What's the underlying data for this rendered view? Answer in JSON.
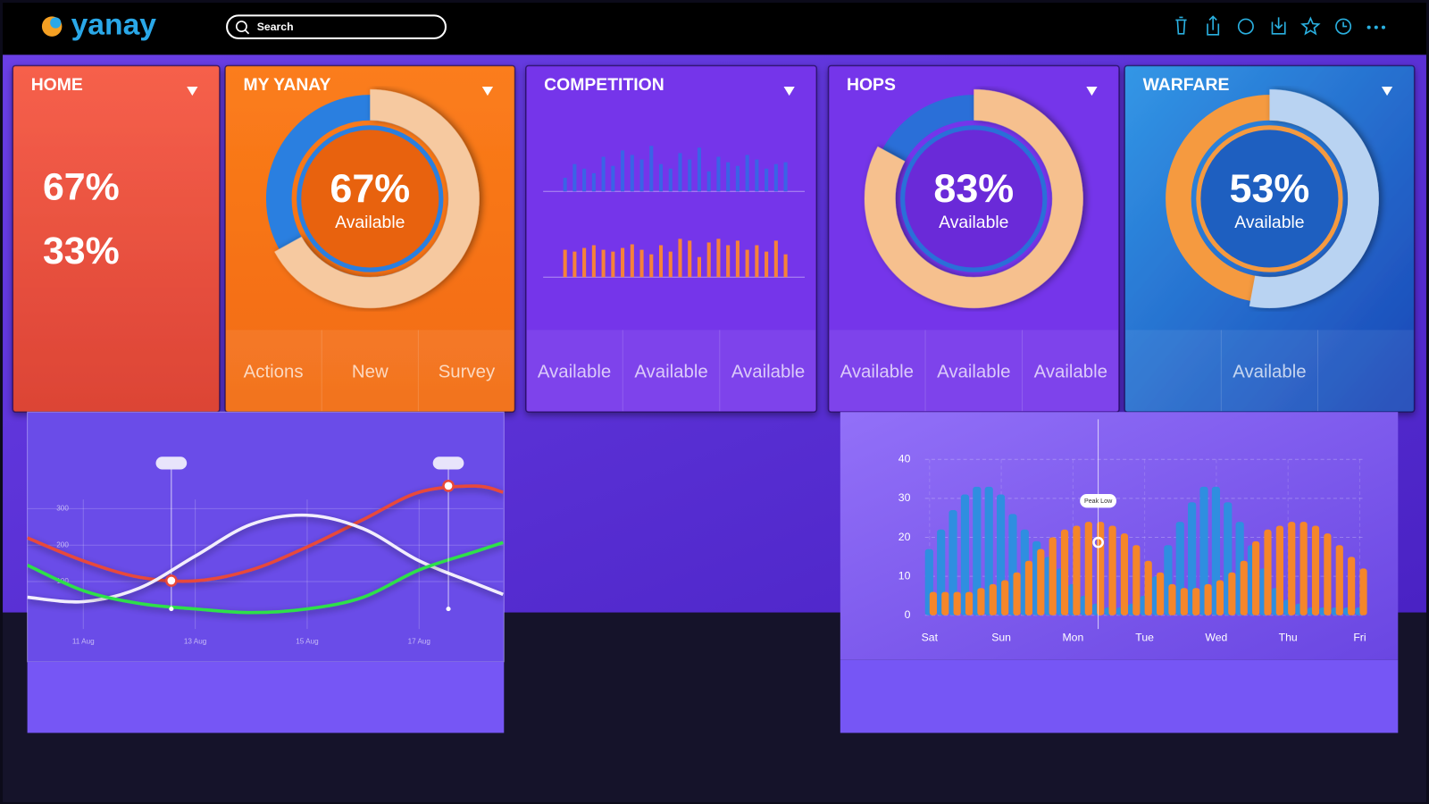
{
  "header": {
    "logo": "yanay",
    "search_placeholder": "Search"
  },
  "cards": [
    {
      "title": "HOME",
      "stats": [
        "67%",
        "33%"
      ]
    },
    {
      "title": "MY YANAY",
      "donut": {
        "value": 67,
        "label": "67%",
        "caption": "Available",
        "arc_color": "#f6c9a0",
        "rest_color": "#2a7fe0",
        "center_color": "#e8620e"
      },
      "footer": [
        "Actions",
        "New",
        "Survey"
      ]
    },
    {
      "title": "COMPETITION",
      "mini_charts": [
        {
          "type": "bar",
          "color": "#3a63e6",
          "ylim": [
            0,
            55
          ],
          "values": [
            15,
            30,
            25,
            20,
            38,
            28,
            45,
            40,
            35,
            50,
            30,
            25,
            42,
            35,
            48,
            22,
            38,
            32,
            28,
            40,
            35,
            25,
            30,
            32
          ]
        },
        {
          "type": "bar",
          "color": "#f5823a",
          "ylim": [
            0,
            55
          ],
          "values": [
            30,
            28,
            32,
            35,
            30,
            28,
            32,
            36,
            30,
            25,
            35,
            28,
            42,
            40,
            22,
            38,
            42,
            35,
            40,
            30,
            35,
            28,
            40,
            25
          ]
        }
      ],
      "footer": [
        "Available",
        "Available",
        "Available"
      ]
    },
    {
      "title": "HOPS",
      "donut": {
        "value": 83,
        "label": "83%",
        "caption": "Available",
        "arc_color": "#f6c08e",
        "rest_color": "#2a6fd8",
        "center_color": "#6a2ad8"
      },
      "footer": [
        "Available",
        "Available",
        "Available"
      ]
    },
    {
      "title": "WARFARE",
      "donut": {
        "value": 53,
        "label": "53%",
        "caption": "Available",
        "arc_color": "#b9d3f2",
        "rest_color": "#f59a40",
        "center_color": "#1e5fc0"
      },
      "footer": [
        "Available"
      ]
    }
  ],
  "chart_data": [
    {
      "type": "line",
      "x": [
        10,
        11,
        12,
        13,
        14,
        15,
        16,
        17,
        18,
        18.5
      ],
      "series": [
        {
          "color": "#e8483a",
          "values": [
            220,
            157,
            112,
            102,
            132,
            195,
            270,
            345,
            362,
            345
          ]
        },
        {
          "color": "#f2eefc",
          "values": [
            57,
            45,
            82,
            170,
            257,
            282,
            245,
            157,
            95,
            65
          ]
        },
        {
          "color": "#2fe04a",
          "values": [
            145,
            75,
            40,
            25,
            15,
            25,
            57,
            132,
            182,
            207
          ]
        }
      ],
      "xlim": [
        10,
        18.5
      ],
      "ylim": [
        -30,
        380
      ],
      "xticks": [
        {
          "value": 11,
          "label": "11 Aug"
        },
        {
          "value": 13,
          "label": "13 Aug"
        },
        {
          "value": 15,
          "label": "15 Aug"
        },
        {
          "value": 17,
          "label": "17 Aug"
        }
      ],
      "yticks": [
        100,
        200,
        300
      ],
      "grid": true
    },
    {
      "type": "bar",
      "categories": [
        "Sat",
        null,
        null,
        null,
        null,
        null,
        "Sun",
        null,
        null,
        null,
        null,
        null,
        "Mon",
        null,
        null,
        null,
        null,
        null,
        "Tue",
        null,
        null,
        null,
        null,
        null,
        "Wed",
        null,
        null,
        null,
        null,
        null,
        "Thu",
        null,
        null,
        null,
        null,
        null,
        "Fri"
      ],
      "series": [
        {
          "color": "#2f8ee0",
          "values": [
            17,
            22,
            27,
            31,
            33,
            33,
            31,
            26,
            22,
            19,
            15,
            12,
            8,
            5,
            3,
            2,
            2,
            3,
            5,
            10,
            18,
            24,
            29,
            33,
            33,
            29,
            24,
            18,
            12,
            7,
            4,
            3,
            2,
            2,
            2,
            2,
            2
          ]
        },
        {
          "color": "#f5862a",
          "values": [
            6,
            6,
            6,
            6,
            7,
            8,
            9,
            11,
            14,
            17,
            20,
            22,
            23,
            24,
            24,
            23,
            21,
            18,
            14,
            11,
            8,
            7,
            7,
            8,
            9,
            11,
            14,
            19,
            22,
            23,
            24,
            24,
            23,
            21,
            18,
            15,
            12
          ]
        }
      ],
      "ylim": [
        0,
        40
      ],
      "yticks": [
        0,
        10,
        20,
        30,
        40
      ],
      "grid": true,
      "annotation": "Peak Low"
    }
  ]
}
